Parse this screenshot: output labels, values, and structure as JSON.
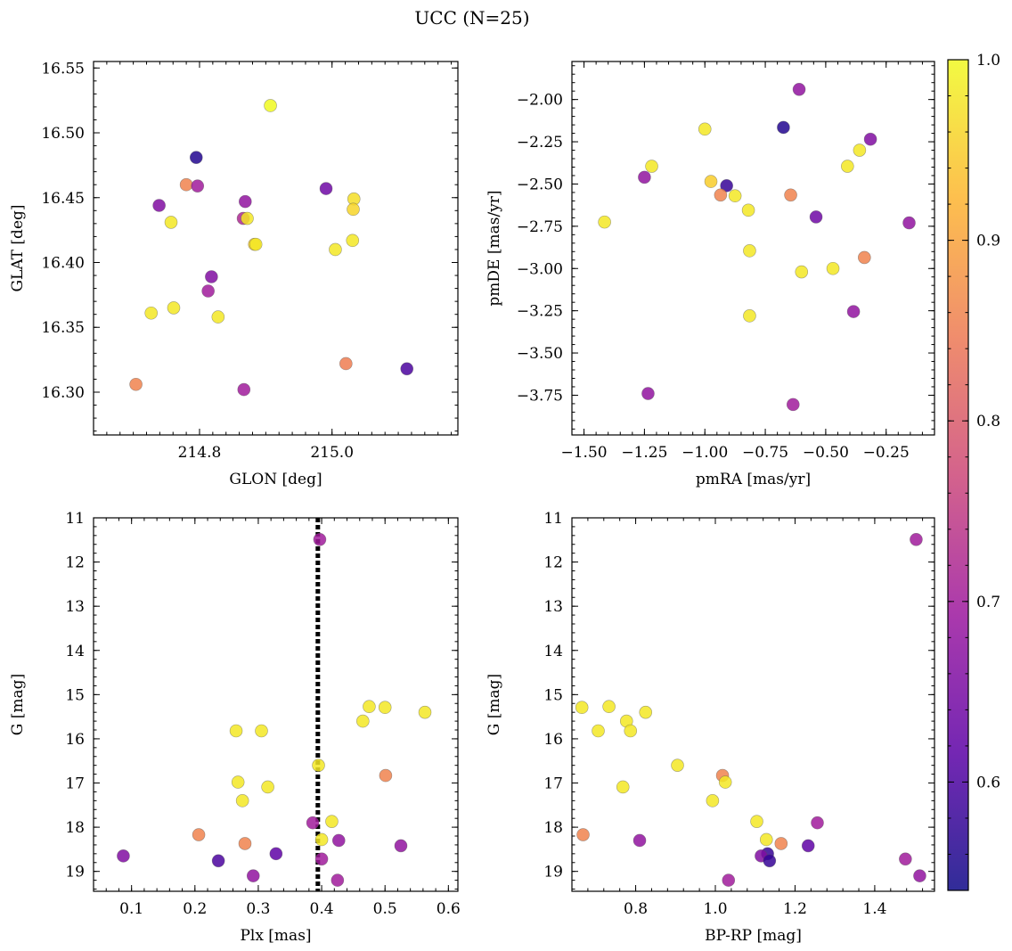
{
  "figure": {
    "suptitle": "UCC (N=25)"
  },
  "colorbar": {
    "range": [
      0.54,
      1.0
    ],
    "ticks": [
      0.6,
      0.7,
      0.8,
      0.9,
      1.0
    ],
    "tick_labels": [
      "0.6",
      "0.7",
      "0.8",
      "0.9",
      "1.0"
    ],
    "colormap": "plasma",
    "color_stops": [
      "#0d0887",
      "#5c01a6",
      "#9c179e",
      "#cc4778",
      "#ed7953",
      "#fdb42f",
      "#f0f921"
    ]
  },
  "chart_data": [
    {
      "type": "scatter",
      "title": "",
      "xlabel": "GLON [deg]",
      "ylabel": "GLAT [deg]",
      "xlim": [
        214.64,
        215.19
      ],
      "ylim": [
        16.267,
        16.555
      ],
      "xticks": [
        214.8,
        215.0
      ],
      "xtick_labels": [
        "214.8",
        "215.0"
      ],
      "yticks": [
        16.3,
        16.35,
        16.4,
        16.45,
        16.5,
        16.55
      ],
      "ytick_labels": [
        "16.30",
        "16.35",
        "16.40",
        "16.45",
        "16.50",
        "16.55"
      ],
      "grid": false,
      "points": [
        {
          "x": 214.907,
          "y": 16.521,
          "c": 1.0
        },
        {
          "x": 214.795,
          "y": 16.481,
          "c": 0.56
        },
        {
          "x": 214.78,
          "y": 16.46,
          "c": 0.86
        },
        {
          "x": 214.797,
          "y": 16.459,
          "c": 0.7
        },
        {
          "x": 214.991,
          "y": 16.457,
          "c": 0.64
        },
        {
          "x": 215.033,
          "y": 16.449,
          "c": 0.97
        },
        {
          "x": 214.869,
          "y": 16.447,
          "c": 0.68
        },
        {
          "x": 214.739,
          "y": 16.444,
          "c": 0.66
        },
        {
          "x": 215.032,
          "y": 16.441,
          "c": 0.96
        },
        {
          "x": 214.866,
          "y": 16.434,
          "c": 0.72
        },
        {
          "x": 214.872,
          "y": 16.434,
          "c": 0.98
        },
        {
          "x": 214.757,
          "y": 16.431,
          "c": 0.98
        },
        {
          "x": 214.883,
          "y": 16.414,
          "c": 0.95
        },
        {
          "x": 214.885,
          "y": 16.414,
          "c": 0.98
        },
        {
          "x": 215.031,
          "y": 16.417,
          "c": 0.98
        },
        {
          "x": 215.005,
          "y": 16.41,
          "c": 0.98
        },
        {
          "x": 214.818,
          "y": 16.389,
          "c": 0.66
        },
        {
          "x": 214.813,
          "y": 16.378,
          "c": 0.7
        },
        {
          "x": 214.761,
          "y": 16.365,
          "c": 0.98
        },
        {
          "x": 214.727,
          "y": 16.361,
          "c": 0.98
        },
        {
          "x": 214.828,
          "y": 16.358,
          "c": 0.98
        },
        {
          "x": 215.021,
          "y": 16.322,
          "c": 0.85
        },
        {
          "x": 215.113,
          "y": 16.318,
          "c": 0.6
        },
        {
          "x": 214.704,
          "y": 16.306,
          "c": 0.86
        },
        {
          "x": 214.867,
          "y": 16.302,
          "c": 0.7
        }
      ]
    },
    {
      "type": "scatter",
      "title": "",
      "xlabel": "pmRA [mas/yr]",
      "ylabel": "pmDE [mas/yr]",
      "xlim": [
        -1.55,
        -0.05
      ],
      "ylim": [
        -3.985,
        -1.775
      ],
      "xticks": [
        -1.5,
        -1.25,
        -1.0,
        -0.75,
        -0.5,
        -0.25
      ],
      "xtick_labels": [
        "−1.50",
        "−1.25",
        "−1.00",
        "−0.75",
        "−0.50",
        "−0.25"
      ],
      "yticks": [
        -3.75,
        -3.5,
        -3.25,
        -3.0,
        -2.75,
        -2.5,
        -2.25,
        -2.0
      ],
      "ytick_labels": [
        "−3.75",
        "−3.50",
        "−3.25",
        "−3.00",
        "−2.75",
        "−2.50",
        "−2.25",
        "−2.00"
      ],
      "grid": false,
      "points": [
        {
          "x": -0.61,
          "y": -1.94,
          "c": 0.68
        },
        {
          "x": -0.675,
          "y": -2.165,
          "c": 0.56
        },
        {
          "x": -1.0,
          "y": -2.175,
          "c": 0.98
        },
        {
          "x": -0.315,
          "y": -2.235,
          "c": 0.66
        },
        {
          "x": -0.36,
          "y": -2.3,
          "c": 0.98
        },
        {
          "x": -1.22,
          "y": -2.395,
          "c": 0.98
        },
        {
          "x": -0.41,
          "y": -2.395,
          "c": 0.98
        },
        {
          "x": -1.25,
          "y": -2.46,
          "c": 0.68
        },
        {
          "x": -0.975,
          "y": -2.485,
          "c": 0.95
        },
        {
          "x": -0.91,
          "y": -2.51,
          "c": 0.58
        },
        {
          "x": -0.935,
          "y": -2.565,
          "c": 0.86
        },
        {
          "x": -0.875,
          "y": -2.57,
          "c": 0.98
        },
        {
          "x": -0.645,
          "y": -2.565,
          "c": 0.86
        },
        {
          "x": -0.82,
          "y": -2.655,
          "c": 0.98
        },
        {
          "x": -0.54,
          "y": -2.695,
          "c": 0.64
        },
        {
          "x": -1.415,
          "y": -2.725,
          "c": 0.98
        },
        {
          "x": -0.155,
          "y": -2.73,
          "c": 0.68
        },
        {
          "x": -0.815,
          "y": -2.895,
          "c": 0.98
        },
        {
          "x": -0.34,
          "y": -2.935,
          "c": 0.86
        },
        {
          "x": -0.47,
          "y": -3.0,
          "c": 0.98
        },
        {
          "x": -0.6,
          "y": -3.02,
          "c": 0.98
        },
        {
          "x": -0.385,
          "y": -3.255,
          "c": 0.68
        },
        {
          "x": -0.815,
          "y": -3.28,
          "c": 0.98
        },
        {
          "x": -1.235,
          "y": -3.74,
          "c": 0.68
        },
        {
          "x": -0.635,
          "y": -3.805,
          "c": 0.7
        }
      ]
    },
    {
      "type": "scatter",
      "title": "",
      "xlabel": "Plx [mas]",
      "ylabel": "G [mag]",
      "xlim": [
        0.04,
        0.615
      ],
      "ylim": [
        19.45,
        11.0
      ],
      "y_inverted": true,
      "xticks": [
        0.1,
        0.2,
        0.3,
        0.4,
        0.5,
        0.6
      ],
      "xtick_labels": [
        "0.1",
        "0.2",
        "0.3",
        "0.4",
        "0.5",
        "0.6"
      ],
      "yticks": [
        11,
        12,
        13,
        14,
        15,
        16,
        17,
        18,
        19
      ],
      "ytick_labels": [
        "11",
        "12",
        "13",
        "14",
        "15",
        "16",
        "17",
        "18",
        "19"
      ],
      "grid": false,
      "vline": {
        "x": 0.394,
        "style": "dotted",
        "color": "#000000"
      },
      "points": [
        {
          "x": 0.397,
          "y": 11.49,
          "c": 0.7
        },
        {
          "x": 0.475,
          "y": 15.27,
          "c": 0.98
        },
        {
          "x": 0.5,
          "y": 15.29,
          "c": 0.98
        },
        {
          "x": 0.563,
          "y": 15.4,
          "c": 0.98
        },
        {
          "x": 0.465,
          "y": 15.6,
          "c": 0.98
        },
        {
          "x": 0.265,
          "y": 15.82,
          "c": 0.98
        },
        {
          "x": 0.305,
          "y": 15.82,
          "c": 0.98
        },
        {
          "x": 0.395,
          "y": 16.6,
          "c": 0.98
        },
        {
          "x": 0.501,
          "y": 16.83,
          "c": 0.86
        },
        {
          "x": 0.268,
          "y": 16.98,
          "c": 0.98
        },
        {
          "x": 0.315,
          "y": 17.09,
          "c": 0.98
        },
        {
          "x": 0.275,
          "y": 17.4,
          "c": 0.98
        },
        {
          "x": 0.416,
          "y": 17.87,
          "c": 0.98
        },
        {
          "x": 0.386,
          "y": 17.9,
          "c": 0.7
        },
        {
          "x": 0.206,
          "y": 18.17,
          "c": 0.86
        },
        {
          "x": 0.4,
          "y": 18.28,
          "c": 0.98
        },
        {
          "x": 0.427,
          "y": 18.3,
          "c": 0.68
        },
        {
          "x": 0.279,
          "y": 18.37,
          "c": 0.86
        },
        {
          "x": 0.525,
          "y": 18.42,
          "c": 0.68
        },
        {
          "x": 0.328,
          "y": 18.6,
          "c": 0.62
        },
        {
          "x": 0.087,
          "y": 18.65,
          "c": 0.66
        },
        {
          "x": 0.4,
          "y": 18.72,
          "c": 0.7
        },
        {
          "x": 0.237,
          "y": 18.76,
          "c": 0.6
        },
        {
          "x": 0.292,
          "y": 19.1,
          "c": 0.68
        },
        {
          "x": 0.425,
          "y": 19.2,
          "c": 0.7
        }
      ]
    },
    {
      "type": "scatter",
      "title": "",
      "xlabel": "BP-RP [mag]",
      "ylabel": "G [mag]",
      "xlim": [
        0.64,
        1.55
      ],
      "ylim": [
        19.45,
        11.0
      ],
      "y_inverted": true,
      "xticks": [
        0.8,
        1.0,
        1.2,
        1.4
      ],
      "xtick_labels": [
        "0.8",
        "1.0",
        "1.2",
        "1.4"
      ],
      "yticks": [
        11,
        12,
        13,
        14,
        15,
        16,
        17,
        18,
        19
      ],
      "ytick_labels": [
        "11",
        "12",
        "13",
        "14",
        "15",
        "16",
        "17",
        "18",
        "19"
      ],
      "grid": false,
      "points": [
        {
          "x": 1.504,
          "y": 11.49,
          "c": 0.7
        },
        {
          "x": 0.665,
          "y": 15.29,
          "c": 0.98
        },
        {
          "x": 0.733,
          "y": 15.27,
          "c": 0.98
        },
        {
          "x": 0.825,
          "y": 15.4,
          "c": 0.98
        },
        {
          "x": 0.777,
          "y": 15.6,
          "c": 0.98
        },
        {
          "x": 0.706,
          "y": 15.82,
          "c": 0.98
        },
        {
          "x": 0.787,
          "y": 15.82,
          "c": 0.98
        },
        {
          "x": 0.905,
          "y": 16.6,
          "c": 0.98
        },
        {
          "x": 1.018,
          "y": 16.83,
          "c": 0.86
        },
        {
          "x": 1.025,
          "y": 16.98,
          "c": 0.98
        },
        {
          "x": 0.768,
          "y": 17.09,
          "c": 0.98
        },
        {
          "x": 0.993,
          "y": 17.4,
          "c": 0.98
        },
        {
          "x": 1.104,
          "y": 17.87,
          "c": 0.98
        },
        {
          "x": 1.256,
          "y": 17.9,
          "c": 0.7
        },
        {
          "x": 0.668,
          "y": 18.17,
          "c": 0.86
        },
        {
          "x": 1.128,
          "y": 18.28,
          "c": 0.98
        },
        {
          "x": 0.81,
          "y": 18.3,
          "c": 0.68
        },
        {
          "x": 1.165,
          "y": 18.37,
          "c": 0.86
        },
        {
          "x": 1.233,
          "y": 18.42,
          "c": 0.62
        },
        {
          "x": 1.131,
          "y": 18.6,
          "c": 0.58
        },
        {
          "x": 1.115,
          "y": 18.65,
          "c": 0.66
        },
        {
          "x": 1.136,
          "y": 18.76,
          "c": 0.58
        },
        {
          "x": 1.477,
          "y": 18.72,
          "c": 0.7
        },
        {
          "x": 1.513,
          "y": 19.1,
          "c": 0.68
        },
        {
          "x": 1.033,
          "y": 19.2,
          "c": 0.7
        }
      ]
    }
  ]
}
